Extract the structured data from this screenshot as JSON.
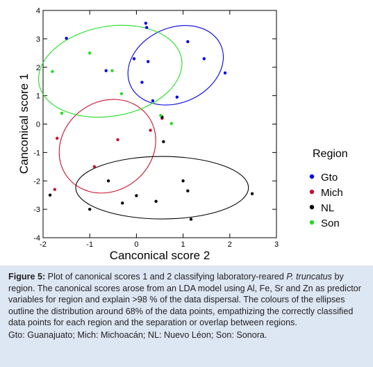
{
  "chart_data": {
    "type": "scatter",
    "xlabel": "Canconical score  2",
    "ylabel": "Canconical score  1",
    "xlim": [
      -2,
      3
    ],
    "ylim": [
      -4,
      4
    ],
    "xticks": [
      "-2",
      "-1",
      "0",
      "1",
      "2",
      "3"
    ],
    "yticks": [
      "-4",
      "-3",
      "-2",
      "-1",
      "0",
      "1",
      "2",
      "3",
      "4"
    ],
    "grid": false,
    "legend": {
      "title": "Region",
      "position": "right"
    },
    "series": [
      {
        "name": "Gto",
        "color": "#0000e6",
        "points": [
          [
            0.2,
            3.55
          ],
          [
            0.22,
            3.4
          ],
          [
            -1.5,
            3.02
          ],
          [
            1.1,
            2.9
          ],
          [
            1.45,
            2.3
          ],
          [
            0.25,
            2.2
          ],
          [
            -0.05,
            2.3
          ],
          [
            -0.65,
            1.88
          ],
          [
            1.9,
            1.8
          ],
          [
            0.12,
            1.47
          ],
          [
            0.35,
            0.82
          ],
          [
            0.87,
            0.95
          ]
        ],
        "ellipse": {
          "center": [
            0.84,
            2.07
          ],
          "rx": 1.06,
          "ry": 1.32,
          "angle": -24
        }
      },
      {
        "name": "Mich",
        "color": "#c8102e",
        "points": [
          [
            -1.7,
            -0.5
          ],
          [
            -0.4,
            -0.55
          ],
          [
            -0.9,
            -1.5
          ],
          [
            -1.75,
            -2.3
          ],
          [
            0.3,
            -0.22
          ],
          [
            0.55,
            0.2
          ]
        ],
        "ellipse": {
          "center": [
            -0.62,
            -0.78
          ],
          "rx": 0.95,
          "ry": 1.78,
          "angle": 52
        }
      },
      {
        "name": "NL",
        "color": "#000000",
        "points": [
          [
            0.55,
            0.25
          ],
          [
            0.58,
            -0.62
          ],
          [
            -0.6,
            -2.0
          ],
          [
            1.0,
            -2.0
          ],
          [
            1.1,
            -2.35
          ],
          [
            -1.85,
            -2.5
          ],
          [
            -1.0,
            -3.0
          ],
          [
            -0.3,
            -2.78
          ],
          [
            0.0,
            -2.52
          ],
          [
            0.42,
            -2.72
          ],
          [
            1.17,
            -3.35
          ],
          [
            2.48,
            -2.45
          ]
        ],
        "ellipse": {
          "center": [
            0.55,
            -2.24
          ],
          "rx": 1.85,
          "ry": 1.1,
          "angle": 0
        }
      },
      {
        "name": "Son",
        "color": "#22dd22",
        "points": [
          [
            -1.8,
            1.85
          ],
          [
            -1.0,
            2.5
          ],
          [
            -0.52,
            1.88
          ],
          [
            -0.32,
            1.07
          ],
          [
            -1.6,
            0.38
          ],
          [
            0.75,
            0.02
          ],
          [
            0.52,
            0.3
          ]
        ],
        "ellipse": {
          "center": [
            -0.56,
            1.86
          ],
          "rx": 1.55,
          "ry": 1.58,
          "angle": -10
        }
      }
    ]
  },
  "caption": {
    "label": "Figure 5:",
    "text_1": " Plot of canonical scores 1 and 2 classifying laboratory-reared ",
    "species": "P. truncatus",
    "text_2": " by region. The canonical scores arose from an LDA model using Al, Fe, Sr and Zn as predictor variables for region and explain >98 % of the data dispersal. The colours of the ellipses outline the distribution around 68% of the data points, empathizing the correctly classified data points for each region and the separation or overlap between regions.",
    "abbreviations": "Gto: Guanajuato; Mich: Michoacán; NL: Nuevo Léon; Son: Sonora."
  }
}
